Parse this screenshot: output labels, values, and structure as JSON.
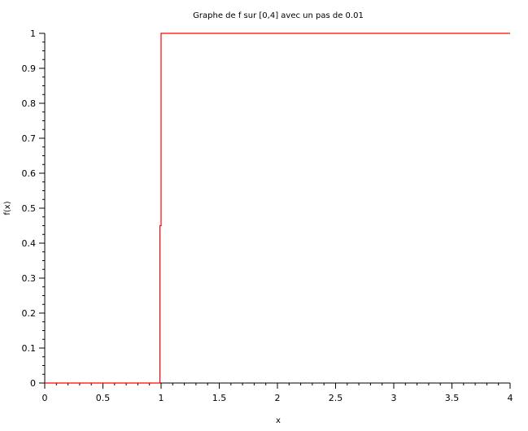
{
  "chart_data": {
    "type": "line",
    "title": "Graphe de f sur [0,4] avec un pas de 0.01",
    "xlabel": "x",
    "ylabel": "f(x)",
    "xlim": [
      0,
      4
    ],
    "ylim": [
      0,
      1
    ],
    "x_ticks": [
      0,
      0.5,
      1,
      1.5,
      2,
      2.5,
      3,
      3.5,
      4
    ],
    "x_tick_labels": [
      "0",
      "0.5",
      "1",
      "1.5",
      "2",
      "2.5",
      "3",
      "3.5",
      "4"
    ],
    "y_ticks": [
      0,
      0.1,
      0.2,
      0.3,
      0.4,
      0.5,
      0.6,
      0.7,
      0.8,
      0.9,
      1
    ],
    "y_tick_labels": [
      "0",
      "0.1",
      "0.2",
      "0.3",
      "0.4",
      "0.5",
      "0.6",
      "0.7",
      "0.8",
      "0.9",
      "1"
    ],
    "grid": false,
    "series": [
      {
        "color": "#ff0000",
        "x": [
          0,
          0.99,
          0.99,
          1,
          1,
          4
        ],
        "y": [
          0,
          0,
          0.45,
          0.45,
          1,
          1
        ]
      }
    ]
  }
}
